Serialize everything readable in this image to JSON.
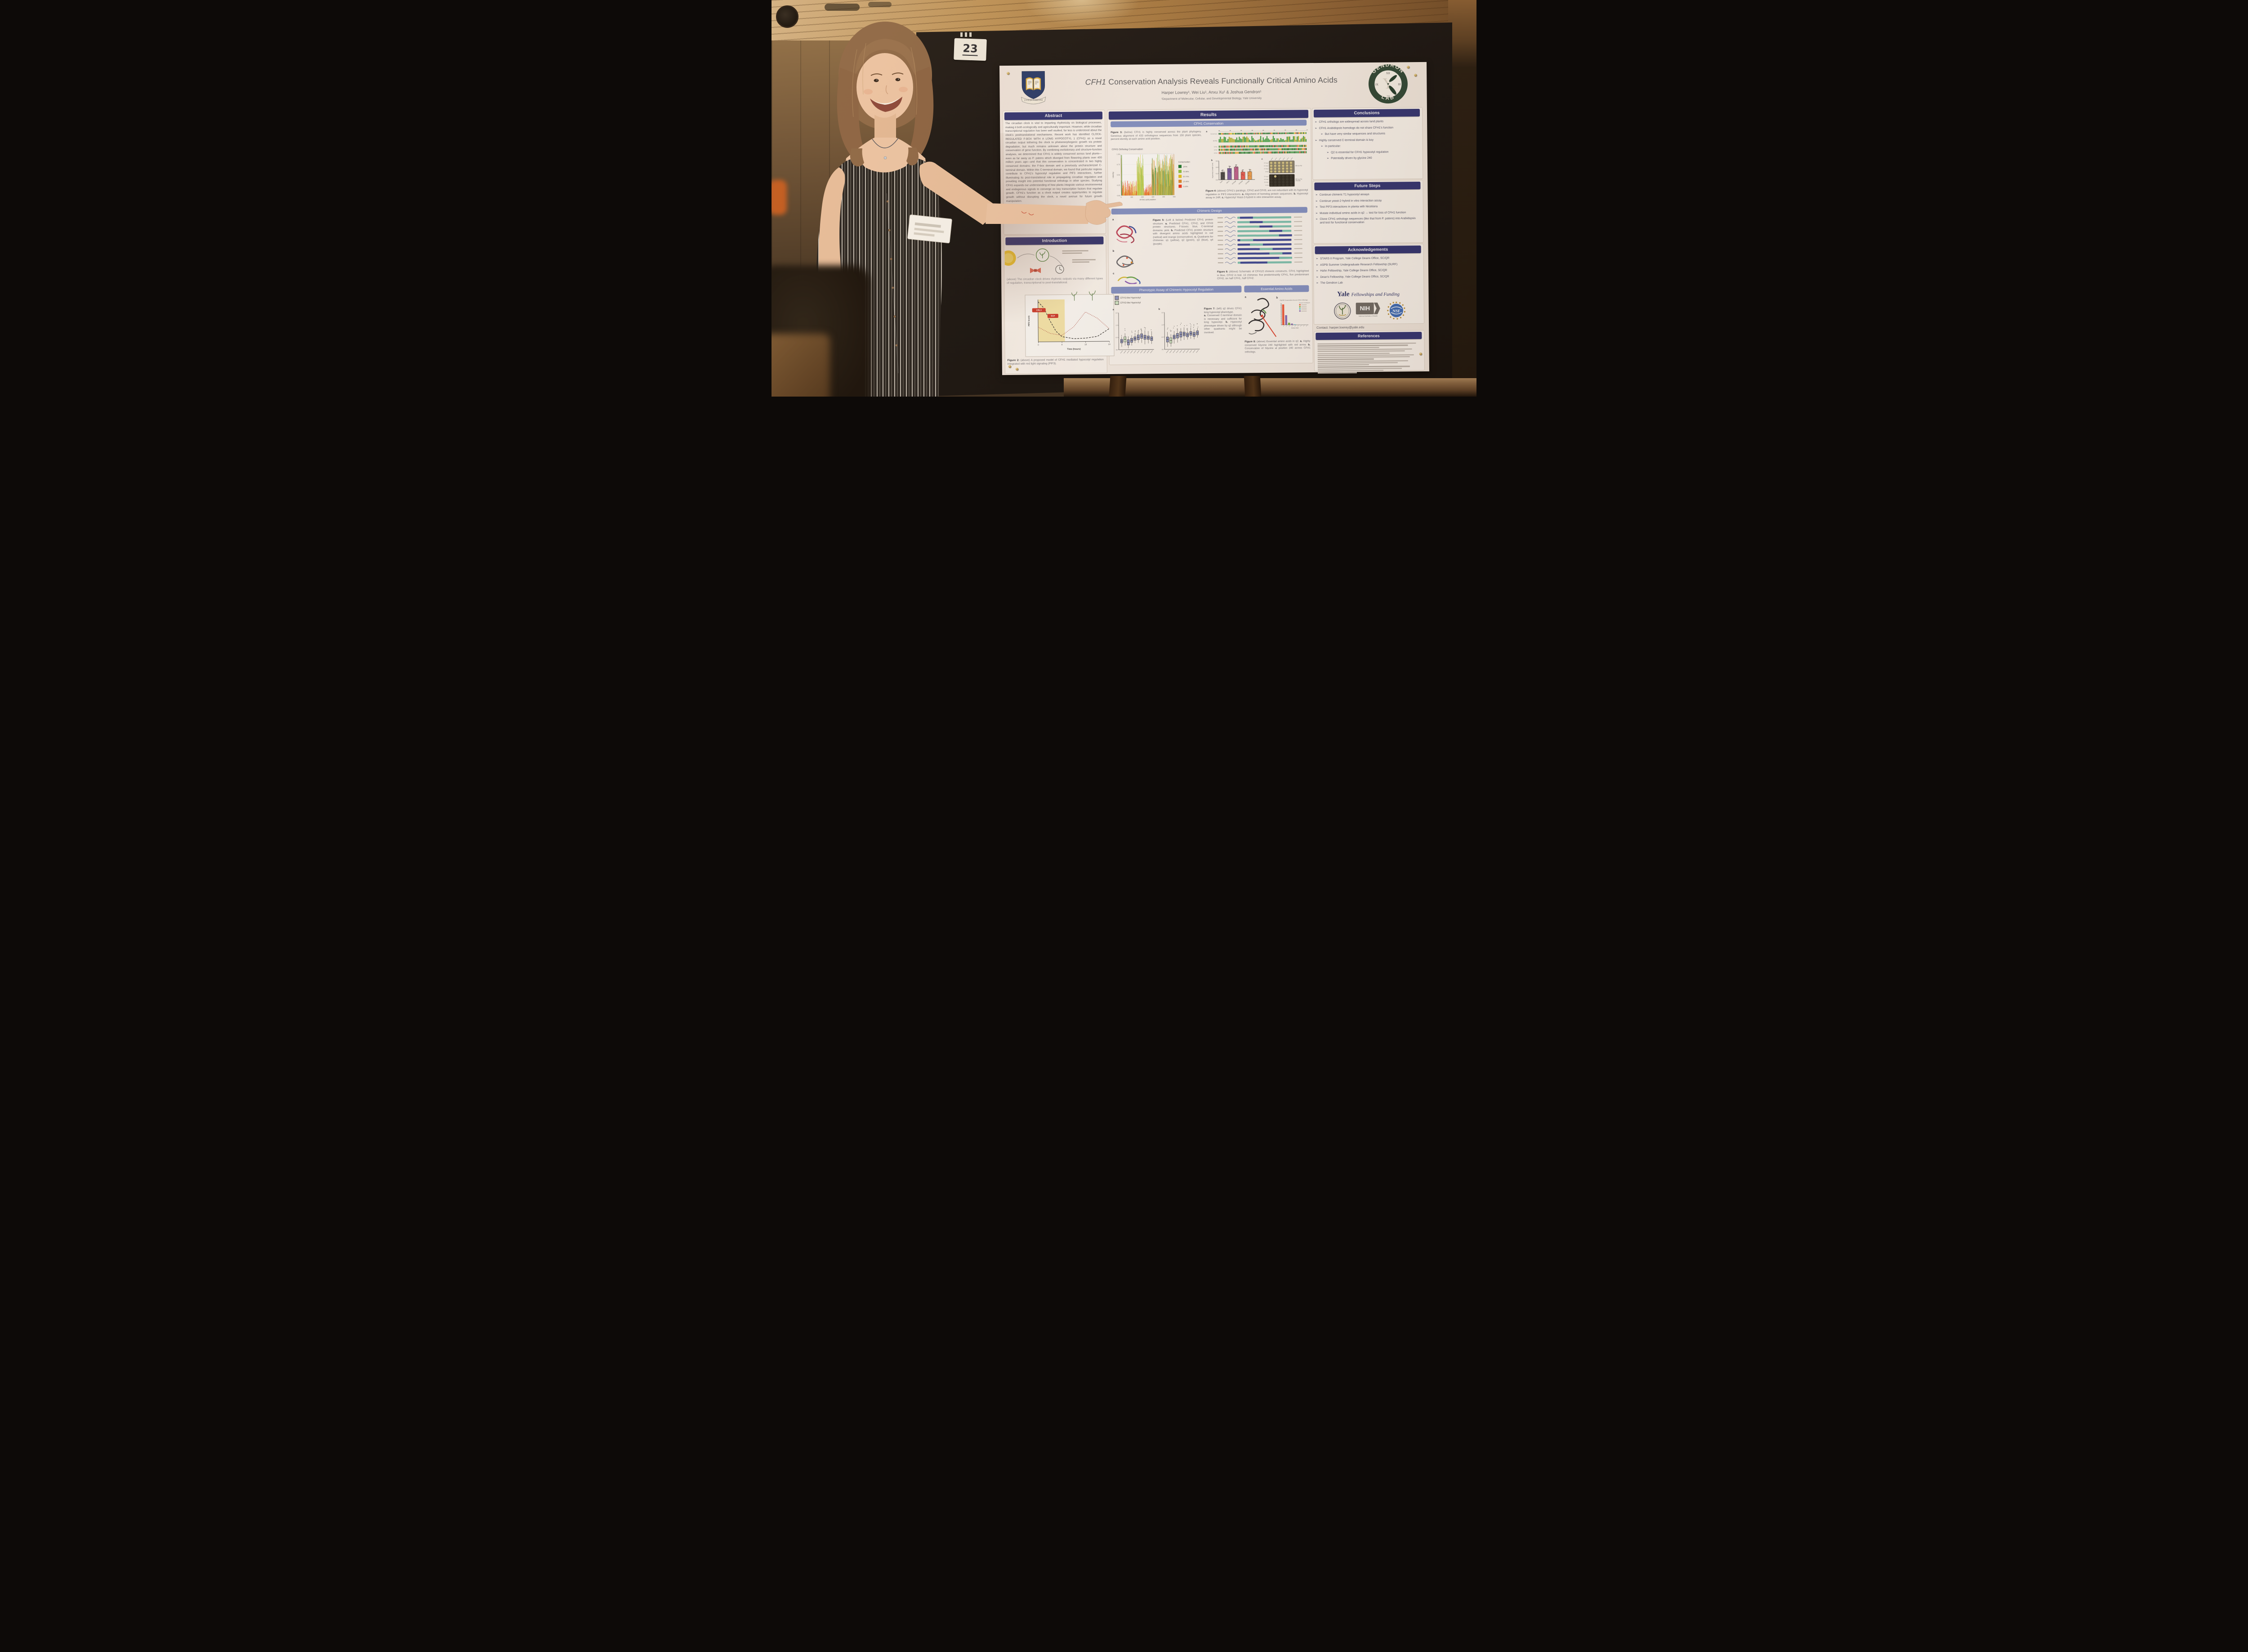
{
  "scene": {
    "board_number": "23"
  },
  "poster": {
    "bullet": "➢",
    "header": {
      "title_gene": "CFH1",
      "title_rest": " Conservation Analysis Reveals Functionally Critical Amino Acids",
      "authors": "Harper Lowrey¹, Wei Liu¹, Anxu Xu¹ & Joshua Gendron¹",
      "affiliation": "¹Department of Molecular, Cellular, and Developmental Biology, Yale University",
      "yale_motto": "LUX ET VERITAS",
      "lab_ring_top": "GENDRON",
      "lab_ring_bottom": "LAB",
      "clock_numerals": [
        "XII",
        "III",
        "VI",
        "IX"
      ]
    },
    "abstract": {
      "heading": "Abstract",
      "body": "The circadian clock is vital to imparting rhythmicity on biological processes, making it both ecologically and agriculturally important. However, while circadian transcriptional regulation has been well studied, far less is understood about the clock's posttranslational mechanisms. Recent work has identified CLOCK-REGULATED F-BOX WITH A LONG HYPOCOTYL 1 (CFH1) as a novel circadian output tethering the clock to photomorphogenic growth via protein degradation, but much remains unknown about the protein structure and conservation of gene function. By combining evolutionary and structure-function analyses, we determined that CFH1 is widely conserved across land plants—even as far away as P. patens which diverged from flowering plants over 400 million years ago—and that this conservation is concentrated in two highly conserved domains: the F-box domain and a previously uncharacterized C-terminal domain. Within this C-terminal domain, we found that particular regions contribute to CFH1's hypocotyl regulation and PIF3 interactions, further illuminating its post-translational role in propagating circadian regulation and providing insight into potential functional orthologs in other species. Studying CFH1 expands our understanding of how plants integrate various environmental and endogenous signals to converge on key transcription factors that regulate growth. CFH1's function as a clock output creates opportunities to regulate growth without disrupting the clock, a novel avenue for future growth manipulation."
    },
    "introduction": {
      "heading": "Introduction",
      "fig1_caption": "(above) The circadian clock drives rhythmic outputs via many different types of regulation, transcriptional to post-translational.",
      "badge1": "CRL3",
      "badge2": "SCF",
      "fig2_label": "Figure 2:",
      "fig2_caption": "(above) A proposed model of CFH1 mediated hypocotyl regulation integrated with red light signaling (PIF3)."
    },
    "results": {
      "heading": "Results",
      "conservation": {
        "heading": "CFH1 Conservation",
        "fig3_label": "Figure 3:",
        "fig3_text": "(below) CFH1 is highly conserved across the plant phylogeny. Geneious alignment of 433 orthologous sequences from 150 plant species, percent identity at each amino acid position.",
        "fig4_label": "Figure 4:",
        "fig4_text": "(above) CFH1's paralogs, CFH2 and CFH3, are not redundant with its hypocotyl regulation or PIF3 interactions.",
        "fig4_items": [
          {
            "label": "a.",
            "text": "Alignment of homolog protein sequences."
          },
          {
            "label": "b.",
            "text": "Hypocotyl assay in 24R."
          },
          {
            "label": "c.",
            "text": "Hypocotyl Yeast-2-hybrid in vitro interaction assay."
          }
        ],
        "panels": [
          "a",
          "b",
          "c"
        ],
        "alignment_rows": [
          "Consensus",
          "Identity",
          "CFH1",
          "CFH2",
          "CFH3"
        ],
        "yeast_rows": [
          "CFH1ΔF",
          "CFH2ΔF",
          "CFH3ΔF",
          "Empty"
        ],
        "plate1_label": "SD-Leu-Trp",
        "plate2_label": "SD-Leu-Trp-His-Ade"
      },
      "chimeric": {
        "heading": "Chimeric Design",
        "fig5_label": "Figure 5:",
        "fig5_intro": "(Left & below) Predicted CFH1 protein structure.",
        "fig5_items": [
          {
            "label": "a.",
            "text": "Predicted CFH1, CFH2, and CFH3 protein structures. F-boxes: blue, C-terminal domains: pink."
          },
          {
            "label": "b.",
            "text": "Predicted CFH1 protein structure with divergent amino acids highlighted in red (radical) and orange (conservative)."
          },
          {
            "label": "c.",
            "text": "Quadrants for chimeras: q1 (yellow), q2 (green), q3 (blue), q4 (purple)."
          }
        ],
        "panels": [
          "a",
          "b",
          "c"
        ],
        "fig6_label": "Figure 6:",
        "fig6_text": "(Above) Schematic of CFH1/2 chimeric constructs. CFH1 highlighted in blue, CFH2 in teal. 16 chimeras: five predominantly CFH1, five predominant CFH2, six half CFH1, half CFH2."
      },
      "phenotypic": {
        "heading": "Phenotypic Assay of Chimeric Hypocotyl Regulation",
        "fig7_label": "Figure 7:",
        "fig7_intro": "(left) q2 drives CFH1 long hypocotyl phenotype.",
        "fig7_items": [
          {
            "label": "a.",
            "text": "Conserved C-terminal domain is necessary and sufficient for long hypocotyl."
          },
          {
            "label": "b.",
            "text": "Hypocotyl phenotype driven by q2 although other quadrants might be involved."
          }
        ],
        "panels": [
          "a",
          "b"
        ]
      },
      "essential": {
        "heading": "Essential Amino Acids",
        "fig8_label": "Figure 8:",
        "fig8_intro": "(above) Essential amino acids in q2.",
        "fig8_items": [
          {
            "label": "a.",
            "text": "Highly conserved Glycine 240 highlighted with red arrow."
          },
          {
            "label": "b.",
            "text": "Conservation of Glycine at position 240 across CFH1 orthologs."
          }
        ],
        "panels": [
          "a",
          "b"
        ]
      }
    },
    "conclusions": {
      "heading": "Conclusions",
      "items": [
        {
          "text": "CFH1 orthologs are widespread across land plants",
          "level": 0
        },
        {
          "text": "CFH1 Arabidopsis homologs do not share CFH1's function",
          "level": 0
        },
        {
          "text": "But have very similar sequences and structures",
          "level": 1
        },
        {
          "text": "Highly conserved C-terminal domain is key",
          "level": 0
        },
        {
          "text": "In particular:",
          "level": 1
        },
        {
          "text": "Q2 is essential for CFH1 hypocotyl regulation",
          "level": 2
        },
        {
          "text": "Potentially driven by glycine 240",
          "level": 2
        }
      ]
    },
    "future_steps": {
      "heading": "Future Steps",
      "items": [
        {
          "text": "Continue chimeric T1 hypocotyl assays",
          "level": 0
        },
        {
          "text": "Continue yeast-2-hybrid in vitro interaction assay",
          "level": 0
        },
        {
          "text": "Test PIF3 interactions in planta with Nicotiana",
          "level": 0
        },
        {
          "text": "Mutate individual amino acids in q2 → test for loss of CFH1 function",
          "level": 0
        },
        {
          "text": "Clone CFH1 orthologs sequences (like that from P. patens) into Arabidopsis and test for functional conservation",
          "level": 0
        }
      ]
    },
    "acknowledgements": {
      "heading": "Acknowledgements",
      "items": [
        {
          "text": "STARS II Program, Yale College Deans Office, SC/QR",
          "level": 0
        },
        {
          "text": "ASPB Summer Undergraduate Research Fellowship (SURF)",
          "level": 0
        },
        {
          "text": "Hahn Fellowship, Yale College Deans Office, SC/QR",
          "level": 0
        },
        {
          "text": "Dean's Fellowship, Yale College Deans Office, SC/QR",
          "level": 0
        },
        {
          "text": "The Gendron Lab",
          "level": 0
        }
      ],
      "funding_wordmark": "Yale",
      "funding_script": "Fellowships and Funding",
      "nih_label": "NIH",
      "nih_sub": "National Institutes of Health"
    },
    "contact": "Contact: harper.lowrey@yale.edu",
    "references": {
      "heading": "References"
    }
  },
  "chart_data": [
    {
      "id": "fig3",
      "type": "bar",
      "title": "CFH1 Ortholog Conservation",
      "xlabel": "Amino acid position",
      "ylabel": "Identity",
      "xticks": [
        0,
        100,
        200,
        300,
        400,
        500
      ],
      "yticks": [
        0.0,
        0.25,
        0.5,
        0.75,
        1.0
      ],
      "legend_title": "Conservation",
      "legend": [
        {
          "label": "100%",
          "color": "#1a7a2e"
        },
        {
          "label": "75-99%",
          "color": "#8cc63f"
        },
        {
          "label": "50-74%",
          "color": "#e8c520"
        },
        {
          "label": "25-49%",
          "color": "#e08a28"
        },
        {
          "label": "0-24%",
          "color": "#f23b1e"
        }
      ],
      "regions": [
        {
          "start": 2,
          "end": 8,
          "min": 0.9,
          "max": 1.0,
          "level": "high"
        },
        {
          "start": 10,
          "end": 148,
          "min": 0.04,
          "max": 0.36,
          "level": "low"
        },
        {
          "start": 150,
          "end": 212,
          "min": 0.45,
          "max": 1.0,
          "level": "mid"
        },
        {
          "start": 214,
          "end": 286,
          "min": 0.04,
          "max": 0.3,
          "level": "low"
        },
        {
          "start": 288,
          "end": 500,
          "min": 0.5,
          "max": 1.0,
          "level": "high"
        }
      ]
    },
    {
      "id": "fig4b",
      "type": "bar",
      "ylabel": "Hypocotyl Length (cm)",
      "ylim": [
        0,
        0.6
      ],
      "yticks": [
        0.0,
        0.2,
        0.4,
        0.6
      ],
      "categories": [
        "Col-0",
        "cfh1-1",
        "CFH1ΔF",
        "CFH2ΔF",
        "CFH3ΔF"
      ],
      "values": [
        0.24,
        0.36,
        0.4,
        0.24,
        0.25
      ],
      "colors": [
        "#4a4a4a",
        "#7b5ea7",
        "#c06090",
        "#f06055",
        "#f0a050"
      ]
    },
    {
      "id": "fig2model",
      "type": "line",
      "xlabel": "Time (hours)",
      "ylabel": "PIF3 levels",
      "xticks": [
        0,
        8,
        16,
        24
      ],
      "shaded_region": {
        "x": [
          0,
          9
        ],
        "color": "#f6e4a0"
      },
      "series": [
        {
          "name": "dashed curve",
          "style": "dashed",
          "color": "#3c3c3c",
          "points": [
            [
              0,
              0.95
            ],
            [
              2,
              0.8
            ],
            [
              4,
              0.5
            ],
            [
              6,
              0.25
            ],
            [
              8,
              0.12
            ],
            [
              12,
              0.07
            ],
            [
              16,
              0.08
            ],
            [
              20,
              0.12
            ],
            [
              24,
              0.3
            ]
          ]
        },
        {
          "name": "dotted curve",
          "style": "dotted",
          "color": "#b05048",
          "points": [
            [
              0,
              0.35
            ],
            [
              4,
              0.2
            ],
            [
              8,
              0.15
            ],
            [
              12,
              0.35
            ],
            [
              16,
              0.7
            ],
            [
              20,
              0.55
            ],
            [
              24,
              0.3
            ]
          ]
        }
      ]
    },
    {
      "id": "fig7box",
      "type": "boxplot",
      "ylim": [
        0,
        1.5
      ],
      "yticks": [
        0.0,
        0.5,
        1.0,
        1.5
      ],
      "legend": [
        {
          "label": "CFH1-like Hypocotyl",
          "color": "#8f97c4"
        },
        {
          "label": "CFH2-like Hypocotyl",
          "color": "#cfe6c8"
        }
      ],
      "panels": [
        {
          "label": "a",
          "medians": [
            0.35,
            0.42,
            0.3,
            0.38,
            0.45,
            0.5,
            0.55,
            0.5,
            0.48,
            0.44
          ],
          "green_idx": [
            1
          ]
        },
        {
          "label": "b",
          "medians": [
            0.4,
            0.36,
            0.5,
            0.55,
            0.6,
            0.62,
            0.58,
            0.64,
            0.6,
            0.66
          ],
          "green_idx": [
            1
          ]
        }
      ]
    },
    {
      "id": "fig8bar",
      "type": "bar",
      "title": "Gly240 Conservation Across CFH1 Orthologs",
      "xlabel": "Amino Acid",
      "values": [
        0.95,
        0.45,
        0.1,
        0.06,
        0.02,
        0.012,
        0.01,
        0.008,
        0.005
      ],
      "colors": [
        "#f05a3c",
        "#8a6fb8",
        "#78b43c",
        "#8a6fb8",
        "#48c0d8",
        "#b8b8b8",
        "#b8b8b8",
        "#b8b8b8",
        "#b8b8b8"
      ],
      "legend_title": "Closest Arabidopsis Homolog"
    }
  ]
}
